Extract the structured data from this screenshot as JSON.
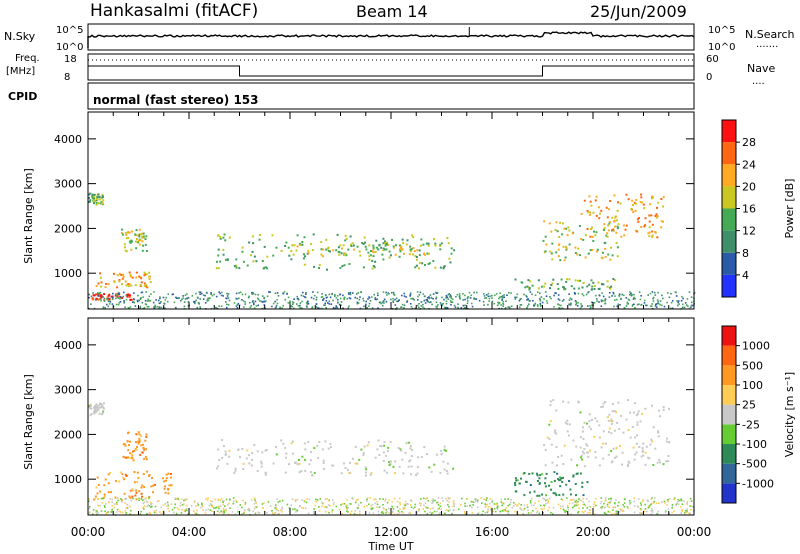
{
  "header": {
    "station": "Hankasalmi (fitACF)",
    "beam": "Beam 14",
    "date": "25/Jun/2009"
  },
  "panels": {
    "nsky": {
      "left_label": "N.Sky",
      "left_ticks": [
        "10^5",
        "10^0"
      ],
      "right_ticks": [
        "10^5",
        "10^0"
      ],
      "right_label": "N.Search",
      "right_legend": "......."
    },
    "freq": {
      "left_label_1": "Freq.",
      "left_label_2": "[MHz]",
      "left_ticks": [
        "18",
        "8"
      ],
      "right_ticks": [
        "60",
        "0"
      ],
      "right_label": "Nave",
      "right_legend": "...."
    },
    "cpid": {
      "label": "CPID",
      "text": "normal (fast stereo) 153"
    }
  },
  "chart_data": [
    {
      "type": "heatmap",
      "name": "power",
      "ylabel": "Slant Range [km]",
      "yticks": [
        1000,
        2000,
        3000,
        4000
      ],
      "ylim": [
        200,
        4600
      ],
      "xlim": [
        0,
        24
      ],
      "colorbar": {
        "label": "Power [dB]",
        "ticks": [
          4,
          8,
          12,
          16,
          20,
          24,
          28
        ],
        "bins": 8,
        "colors": [
          "#2233ff",
          "#2a5aa8",
          "#3f8f6a",
          "#44aa55",
          "#c8c820",
          "#ffaa22",
          "#ff6611",
          "#ff1111"
        ]
      },
      "regions": [
        {
          "t0": 0.0,
          "t1": 0.6,
          "r0": 2550,
          "r1": 2800,
          "level": 3
        },
        {
          "t0": 0.1,
          "t1": 1.7,
          "r0": 420,
          "r1": 560,
          "level": 7
        },
        {
          "t0": 0.2,
          "t1": 2.5,
          "r0": 700,
          "r1": 1050,
          "level": 5
        },
        {
          "t0": 1.3,
          "t1": 2.3,
          "r0": 1500,
          "r1": 2000,
          "level": 4
        },
        {
          "t0": 5.0,
          "t1": 14.5,
          "r0": 1100,
          "r1": 1900,
          "level": 3
        },
        {
          "t0": 8.0,
          "t1": 13.5,
          "r0": 1400,
          "r1": 1700,
          "level": 4
        },
        {
          "t0": 18.0,
          "t1": 21.0,
          "r0": 1300,
          "r1": 2200,
          "level": 4
        },
        {
          "t0": 19.5,
          "t1": 22.8,
          "r0": 1800,
          "r1": 2800,
          "level": 5
        },
        {
          "t0": 16.8,
          "t1": 21.0,
          "r0": 650,
          "r1": 900,
          "level": 3
        }
      ]
    },
    {
      "type": "heatmap",
      "name": "velocity",
      "ylabel": "Slant Range [km]",
      "yticks": [
        1000,
        2000,
        3000,
        4000
      ],
      "ylim": [
        200,
        4600
      ],
      "xlim": [
        0,
        24
      ],
      "xticks": [
        "00:00",
        "04:00",
        "08:00",
        "12:00",
        "16:00",
        "20:00",
        "00:00"
      ],
      "xlabel": "Time UT",
      "colorbar": {
        "label": "Velocity [m s⁻¹]",
        "ticks": [
          1000,
          500,
          100,
          25,
          -25,
          -100,
          -500,
          -1000
        ],
        "bins": 9,
        "colors": [
          "#2233cc",
          "#336699",
          "#2e8b57",
          "#66cc33",
          "#c8c8c8",
          "#ffcc55",
          "#ff9922",
          "#ff6611",
          "#ee1111"
        ]
      },
      "regions": [
        {
          "t0": 0.0,
          "t1": 0.6,
          "r0": 2450,
          "r1": 2750,
          "level": 4
        },
        {
          "t0": 0.2,
          "t1": 3.3,
          "r0": 550,
          "r1": 1200,
          "level": 6
        },
        {
          "t0": 1.3,
          "t1": 2.3,
          "r0": 1400,
          "r1": 2100,
          "level": 6
        },
        {
          "t0": 5.0,
          "t1": 14.5,
          "r0": 1100,
          "r1": 1900,
          "level": 4
        },
        {
          "t0": 18.0,
          "t1": 23.0,
          "r0": 1300,
          "r1": 2800,
          "level": 4
        },
        {
          "t0": 16.8,
          "t1": 19.8,
          "r0": 650,
          "r1": 1200,
          "level": 2
        }
      ]
    }
  ]
}
